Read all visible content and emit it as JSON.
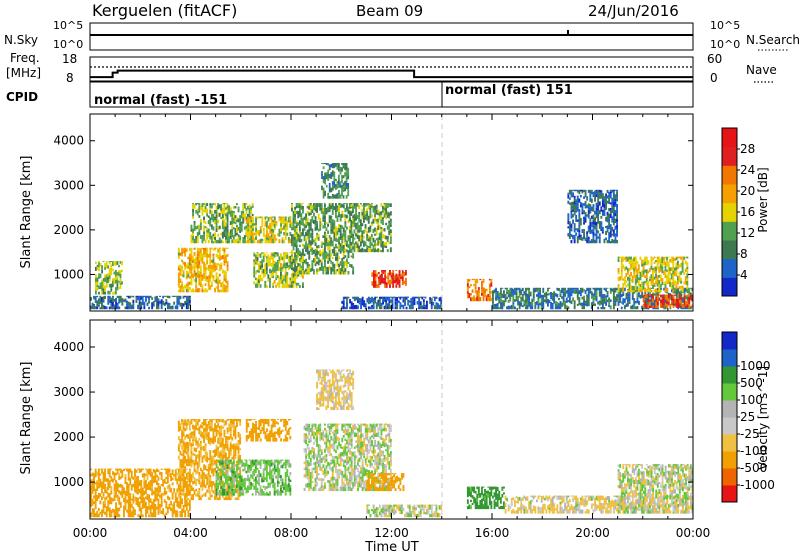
{
  "header": {
    "station": "Kerguelen (fitACF)",
    "beam": "Beam 09",
    "date": "24/Jun/2016"
  },
  "noise_panel": {
    "left_label": "N.Sky",
    "right_label": "N.Search",
    "left_ticks": [
      "10^5",
      "10^0"
    ],
    "right_ticks": [
      "10^5",
      "10^0"
    ],
    "search_noise_log10": 4.3,
    "spike_hour": 18.9
  },
  "freq_panel": {
    "left_label_1": "Freq.",
    "left_label_2": "[MHz]",
    "right_label": "Nave",
    "left_ticks": [
      18,
      8
    ],
    "right_ticks": [
      60,
      0
    ],
    "freq_mhz": [
      {
        "start_h": 0,
        "end_h": 0.9,
        "value": 9.6
      },
      {
        "start_h": 0.9,
        "end_h": 1.1,
        "value": 11.5
      },
      {
        "start_h": 1.1,
        "end_h": 12.9,
        "value": 12.3
      },
      {
        "start_h": 12.9,
        "end_h": 24,
        "value": 9.6
      }
    ],
    "nave_level": 21
  },
  "cpid_panel": {
    "label": "CPID",
    "modes": [
      {
        "label": "normal (fast) -151",
        "start_h": 0,
        "end_h": 14
      },
      {
        "label": "normal (fast) 151",
        "start_h": 14,
        "end_h": 24
      }
    ]
  },
  "colors": {
    "power_scale": [
      "#1428c8",
      "#1e64c8",
      "#3c7850",
      "#50a050",
      "#e6d200",
      "#f5a000",
      "#f07800",
      "#e02020",
      "#e61414"
    ],
    "velocity_scale": [
      "#e61414",
      "#f06400",
      "#f0a000",
      "#f0c040",
      "#c8c8c8",
      "#b4b4b4",
      "#64c83c",
      "#329632",
      "#1e64c8",
      "#1428c8"
    ],
    "mode_divider": "#c8c8c8"
  },
  "chart_data": [
    {
      "type": "heatmap",
      "name": "power",
      "xlabel": "",
      "ylabel": "Slant Range [km]",
      "yticks": [
        1000,
        2000,
        3000,
        4000
      ],
      "ylim": [
        180,
        4600
      ],
      "xlim_hours": [
        0,
        24
      ],
      "colorbar": {
        "label": "Power [dB]",
        "ticks": [
          4,
          8,
          12,
          16,
          20,
          24,
          28
        ],
        "range": [
          0,
          32
        ]
      },
      "regions": [
        {
          "t0": 0.0,
          "t1": 4.0,
          "r0": 220,
          "r1": 520,
          "value": 6
        },
        {
          "t0": 0.2,
          "t1": 1.3,
          "r0": 550,
          "r1": 1300,
          "value": 14
        },
        {
          "t0": 3.5,
          "t1": 5.5,
          "r0": 600,
          "r1": 1600,
          "value": 18
        },
        {
          "t0": 4.0,
          "t1": 6.5,
          "r0": 1700,
          "r1": 2600,
          "value": 13
        },
        {
          "t0": 6.2,
          "t1": 8.0,
          "r0": 1700,
          "r1": 2300,
          "value": 16
        },
        {
          "t0": 6.5,
          "t1": 8.5,
          "r0": 700,
          "r1": 1500,
          "value": 14
        },
        {
          "t0": 8.0,
          "t1": 10.5,
          "r0": 1000,
          "r1": 2600,
          "value": 12
        },
        {
          "t0": 9.2,
          "t1": 10.3,
          "r0": 2700,
          "r1": 3500,
          "value": 10
        },
        {
          "t0": 10.3,
          "t1": 12.0,
          "r0": 1500,
          "r1": 2600,
          "value": 12
        },
        {
          "t0": 11.2,
          "t1": 12.6,
          "r0": 700,
          "r1": 1100,
          "value": 26
        },
        {
          "t0": 10.0,
          "t1": 14.0,
          "r0": 220,
          "r1": 500,
          "value": 5
        },
        {
          "t0": 15.0,
          "t1": 16.0,
          "r0": 400,
          "r1": 900,
          "value": 22
        },
        {
          "t0": 16.0,
          "t1": 24.0,
          "r0": 220,
          "r1": 700,
          "value": 8
        },
        {
          "t0": 19.0,
          "t1": 21.0,
          "r0": 1700,
          "r1": 2900,
          "value": 6
        },
        {
          "t0": 21.0,
          "t1": 23.8,
          "r0": 600,
          "r1": 1400,
          "value": 16
        },
        {
          "t0": 22.0,
          "t1": 24.0,
          "r0": 250,
          "r1": 550,
          "value": 26
        }
      ]
    },
    {
      "type": "heatmap",
      "name": "velocity",
      "xlabel": "Time UT",
      "ylabel": "Slant Range [km]",
      "yticks": [
        1000,
        2000,
        3000,
        4000
      ],
      "ylim": [
        180,
        4600
      ],
      "xticks": [
        "00:00",
        "04:00",
        "08:00",
        "12:00",
        "16:00",
        "20:00",
        "00:00"
      ],
      "xlim_hours": [
        0,
        24
      ],
      "colorbar": {
        "label": "Velocity [m s^-1]",
        "ticks": [
          "-1000",
          "-500",
          "-100",
          "-25",
          "25",
          "100",
          "500",
          "1000"
        ]
      },
      "regions": [
        {
          "t0": 0.0,
          "t1": 4.0,
          "r0": 220,
          "r1": 1300,
          "value": -150
        },
        {
          "t0": 3.5,
          "t1": 6.0,
          "r0": 600,
          "r1": 2400,
          "value": -120
        },
        {
          "t0": 5.0,
          "t1": 8.0,
          "r0": 700,
          "r1": 1500,
          "value": 60
        },
        {
          "t0": 6.2,
          "t1": 8.0,
          "r0": 1900,
          "r1": 2400,
          "value": -200
        },
        {
          "t0": 8.5,
          "t1": 12.0,
          "r0": 800,
          "r1": 2300,
          "value": 10
        },
        {
          "t0": 9.0,
          "t1": 10.5,
          "r0": 2600,
          "r1": 3500,
          "value": -40
        },
        {
          "t0": 11.0,
          "t1": 12.5,
          "r0": 800,
          "r1": 1200,
          "value": -300
        },
        {
          "t0": 11.0,
          "t1": 14.0,
          "r0": 220,
          "r1": 500,
          "value": 5
        },
        {
          "t0": 15.0,
          "t1": 16.5,
          "r0": 400,
          "r1": 900,
          "value": 150
        },
        {
          "t0": 16.5,
          "t1": 24.0,
          "r0": 300,
          "r1": 700,
          "value": -30
        },
        {
          "t0": 21.0,
          "t1": 24.0,
          "r0": 300,
          "r1": 1400,
          "value": 0
        }
      ]
    }
  ]
}
